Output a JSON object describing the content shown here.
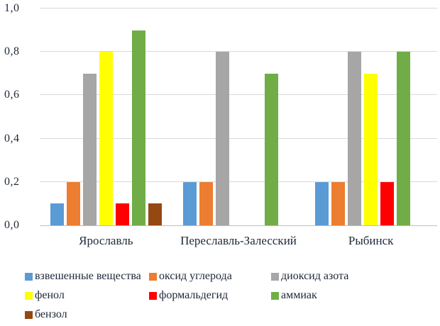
{
  "chart_data": {
    "type": "bar",
    "title": "",
    "xlabel": "",
    "ylabel": "",
    "categories": [
      "Ярославль",
      "Переславль-Залесский",
      "Рыбинск"
    ],
    "series": [
      {
        "name": "взвешенные вещества",
        "color": "#5B9BD5",
        "values": [
          0.1,
          0.2,
          0.2
        ]
      },
      {
        "name": "оксид углерода",
        "color": "#ED7D31",
        "values": [
          0.2,
          0.2,
          0.2
        ]
      },
      {
        "name": "диоксид азота",
        "color": "#A6A6A6",
        "values": [
          0.7,
          0.8,
          0.8
        ]
      },
      {
        "name": "фенол",
        "color": "#FFFF00",
        "values": [
          0.8,
          0.0,
          0.7
        ]
      },
      {
        "name": "формальдегид",
        "color": "#FF0000",
        "values": [
          0.1,
          0.0,
          0.2
        ]
      },
      {
        "name": "аммиак",
        "color": "#70AD47",
        "values": [
          0.9,
          0.7,
          0.8
        ]
      },
      {
        "name": "бензол",
        "color": "#944812",
        "values": [
          0.1,
          0.0,
          0.0
        ]
      }
    ],
    "ylim": [
      0,
      1
    ],
    "ytick_labels": [
      "0,0",
      "0,2",
      "0,4",
      "0,6",
      "0,8",
      "1,0"
    ],
    "grid": true,
    "gridline_color": "#D9D9D9",
    "axis_line_color": "#BFBFBF",
    "text_color": "#20293a",
    "legend_position": "bottom"
  }
}
